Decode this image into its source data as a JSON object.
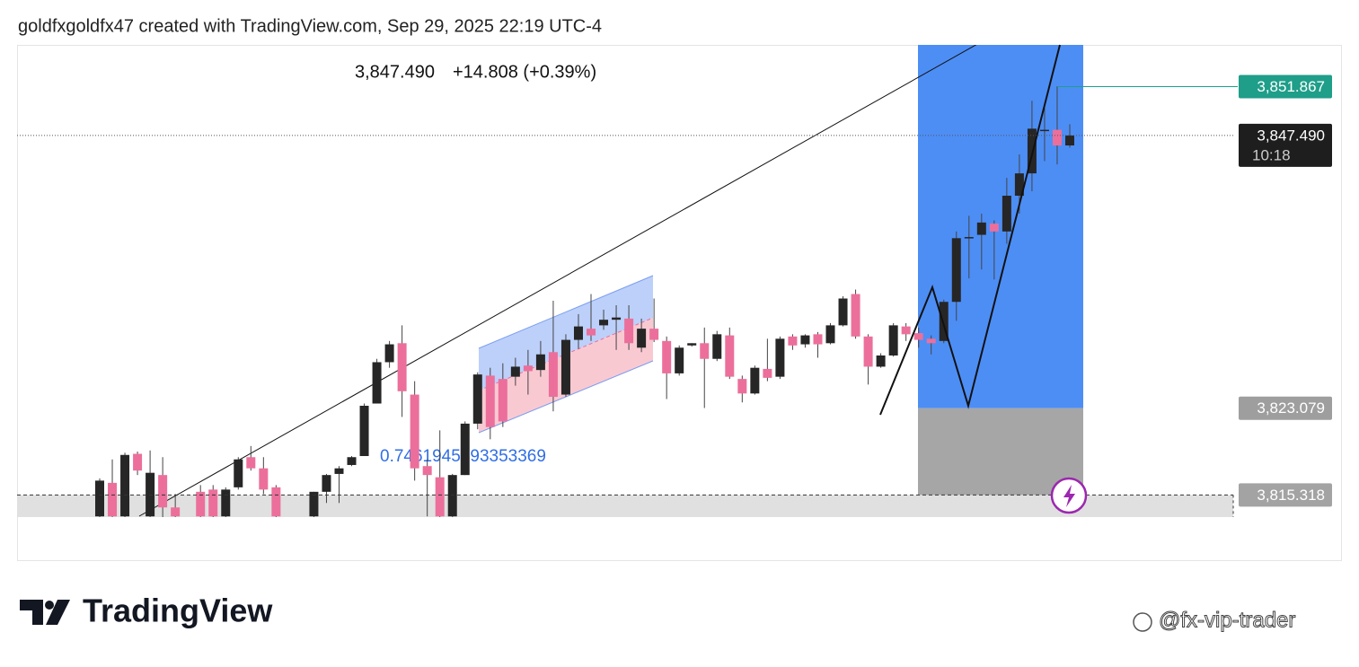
{
  "header": {
    "text": "goldfxgoldfx47 created with TradingView.com, Sep 29, 2025 22:19 UTC-4"
  },
  "chart_data": {
    "type": "candlestick",
    "last": "3,847.490",
    "change": "+14.808 (+0.39%)",
    "annotation": "0.7461945393353369",
    "ylim": [
      3809.4,
      3855.6
    ],
    "up_color": "#262626",
    "down_color": "#ec6f9b",
    "open": [
      3813.4,
      3816.4,
      3813.4,
      3819.0,
      3813.4,
      3817.1,
      3814.2,
      null,
      3815.6,
      3815.8,
      3813.4,
      3816.0,
      3818.7,
      3817.7,
      3816.0,
      null,
      null,
      3813.4,
      3815.6,
      3817.2,
      3818.0,
      3818.8,
      3823.5,
      3827.2,
      3828.9,
      3824.3,
      3817.9,
      3816.9,
      3813.4,
      3817.1,
      3821.7,
      3826.0,
      3825.7,
      3825.9,
      3826.9,
      3826.5,
      3828.1,
      3824.3,
      3829.2,
      3830.2,
      3830.5,
      3831.0,
      3831.1,
      3828.5,
      3830.2,
      3829.1,
      3826.2,
      3828.7,
      3828.9,
      3827.5,
      3829.6,
      3825.7,
      3824.4,
      3826.6,
      3825.9,
      3829.5,
      3828.8,
      3829.7,
      3828.9,
      3830.5,
      3833.3,
      3829.5,
      3826.8,
      3827.8,
      3830.4,
      3829.8,
      3829.3,
      3829.1,
      3832.6,
      3838.3,
      3838.6,
      3839.6,
      3838.9,
      3842.1,
      3844.1,
      3848.0,
      3848.0,
      3846.6
    ],
    "high": [
      3816.8,
      3818.5,
      3819.1,
      3819.2,
      3819.3,
      3818.7,
      3815.4,
      null,
      3816.2,
      3816.2,
      3816.0,
      3818.7,
      3819.7,
      3818.7,
      3816.2,
      null,
      null,
      3815.6,
      3817.2,
      3817.9,
      3818.8,
      3823.5,
      3827.5,
      3829.1,
      3830.5,
      3825.5,
      3818.5,
      3821.1,
      3817.2,
      3821.9,
      3826.3,
      3826.7,
      3827.1,
      3827.6,
      3828.3,
      3829.1,
      3832.7,
      3829.7,
      3831.5,
      3833.3,
      3831.9,
      3832.3,
      3832.3,
      3831.1,
      3832.9,
      3829.5,
      3828.7,
      3828.9,
      3830.3,
      3830.0,
      3830.3,
      3826.0,
      3826.9,
      3829.3,
      3829.5,
      3829.7,
      3829.7,
      3829.9,
      3830.7,
      3833.1,
      3833.7,
      3829.7,
      3828.0,
      3830.7,
      3830.7,
      3830.3,
      3829.6,
      3832.8,
      3838.9,
      3840.3,
      3840.5,
      3839.9,
      3843.7,
      3845.8,
      3850.6,
      3850.0,
      3851.9,
      3848.5
    ],
    "low": [
      3813.3,
      3813.3,
      3813.3,
      3817.1,
      3813.3,
      3813.3,
      3813.3,
      null,
      3813.3,
      3813.3,
      3813.3,
      3815.8,
      3817.5,
      3815.4,
      3813.3,
      null,
      null,
      3813.3,
      3814.6,
      3814.6,
      3817.9,
      3818.8,
      3823.5,
      3826.7,
      3822.3,
      3816.6,
      3813.4,
      3813.3,
      3813.3,
      3817.1,
      3821.2,
      3820.3,
      3821.4,
      3825.1,
      3824.3,
      3825.9,
      3822.8,
      3824.1,
      3828.4,
      3829.1,
      3830.1,
      3828.3,
      3828.3,
      3828.1,
      3829.0,
      3823.9,
      3826.0,
      3828.6,
      3823.1,
      3827.3,
      3825.7,
      3823.6,
      3824.3,
      3825.5,
      3825.7,
      3828.3,
      3828.5,
      3827.6,
      3828.8,
      3830.4,
      3829.3,
      3825.2,
      3826.7,
      3827.7,
      3829.1,
      3828.5,
      3827.9,
      3828.9,
      3830.9,
      3834.7,
      3835.5,
      3834.6,
      3837.8,
      3840.5,
      3842.5,
      3845.2,
      3844.9,
      3846.4
    ],
    "close": [
      3816.6,
      3813.4,
      3818.9,
      3817.5,
      3817.3,
      3814.2,
      3813.4,
      null,
      3813.4,
      3813.4,
      3815.8,
      3818.5,
      3817.7,
      3815.8,
      3813.4,
      null,
      null,
      3815.6,
      3817.1,
      3817.7,
      3818.7,
      3823.3,
      3827.2,
      3828.8,
      3824.6,
      3817.7,
      3817.1,
      3813.4,
      3817.1,
      3821.7,
      3826.1,
      3821.4,
      3821.9,
      3826.8,
      3826.4,
      3827.9,
      3824.1,
      3829.2,
      3830.4,
      3829.6,
      3831.0,
      3831.2,
      3828.9,
      3830.2,
      3829.2,
      3826.2,
      3828.5,
      3828.9,
      3827.5,
      3829.7,
      3825.9,
      3824.4,
      3826.7,
      3825.8,
      3829.3,
      3828.7,
      3829.6,
      3828.8,
      3830.5,
      3832.9,
      3829.5,
      3826.8,
      3827.8,
      3830.5,
      3829.7,
      3829.2,
      3828.9,
      3832.6,
      3838.3,
      3838.4,
      3839.7,
      3838.9,
      3842.1,
      3844.1,
      3848.1,
      3848.0,
      3846.6,
      3847.49
    ],
    "price_labels": [
      {
        "value": 3851.867,
        "label": "3,851.867"
      },
      {
        "value": 3847.49,
        "label": "3,847.490"
      },
      {
        "value": 3823.079,
        "label": "3,823.079"
      },
      {
        "value": 3815.318,
        "label": "3,815.318"
      }
    ],
    "countdown": "10:18"
  },
  "footer": {
    "logo": "TradingView",
    "watermark": "@fx-vip-trader"
  }
}
